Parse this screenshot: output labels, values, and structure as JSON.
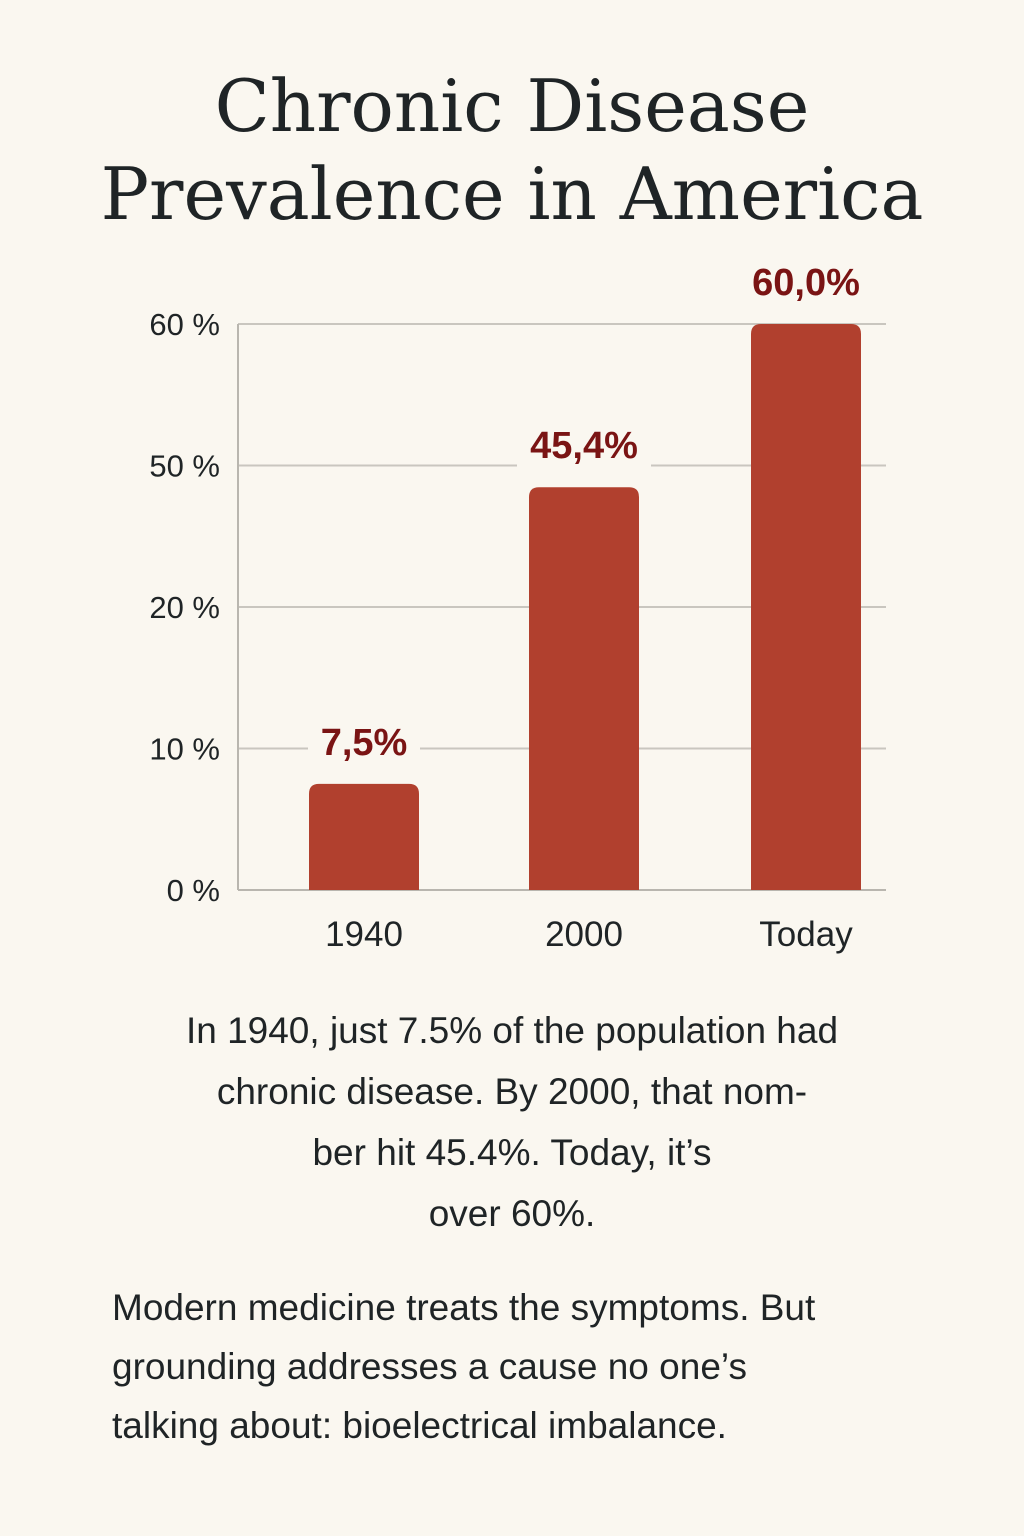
{
  "title": {
    "line1": "Chronic Disease",
    "line2": "Prevalence in America"
  },
  "caption": {
    "lines": [
      "In 1940, just 7.5% of the population had",
      "chronic disease. By 2000, that nom-",
      "ber hit 45.4%. Today, it’s",
      "over 60%."
    ]
  },
  "body": {
    "lines": [
      "Modern medicine treats the symptoms. But",
      "grounding addresses a cause no one’s",
      "talking about: bioelectrical imbalance."
    ]
  },
  "chart_data": {
    "type": "bar",
    "categories": [
      "1940",
      "2000",
      "Today"
    ],
    "values": [
      7.5,
      45.4,
      60.0
    ],
    "value_labels": [
      "7,5%",
      "45,4%",
      "60,0%"
    ],
    "y_ticks": [
      "0 %",
      "10 %",
      "20 %",
      "50 %",
      "60 %"
    ],
    "title": "Chronic Disease Prevalence in America",
    "xlabel": "",
    "ylabel": "",
    "grid": true,
    "legend": "none",
    "colors": {
      "bar": "#b1402e",
      "data_label": "#7a1414",
      "grid": "#c9c6bf",
      "axis": "#b9b6af",
      "text": "#1f2426",
      "background": "#faf7f0"
    }
  }
}
